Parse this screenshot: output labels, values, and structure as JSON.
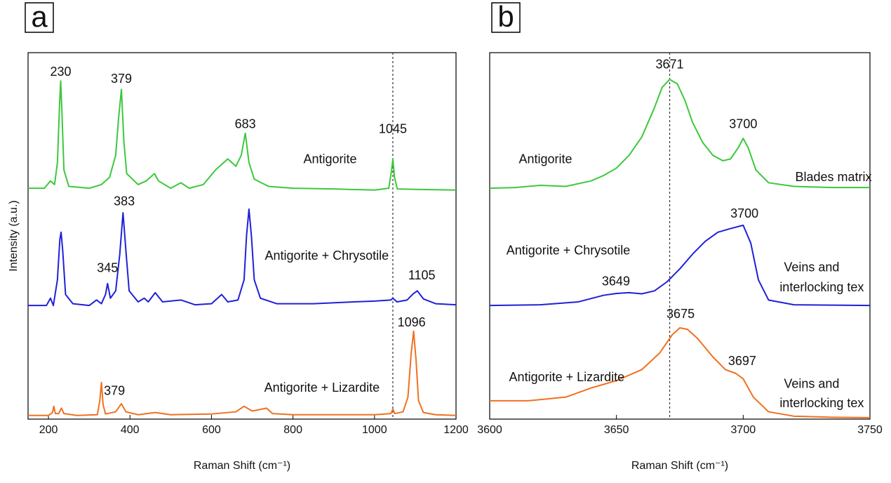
{
  "chart_data": [
    {
      "type": "line",
      "panel_label": "a",
      "xlabel": "Raman Shift (cm⁻¹)",
      "ylabel": "Intensity (a.u.)",
      "xlim": [
        150,
        1200
      ],
      "ylim": [
        0,
        10
      ],
      "xticks": [
        200,
        400,
        600,
        800,
        1000,
        1200
      ],
      "grid": false,
      "vline": 1045,
      "series": [
        {
          "name": "Antigorite",
          "color": "#3cc83c",
          "x": [
            150,
            190,
            205,
            215,
            222,
            227,
            230,
            233,
            238,
            250,
            300,
            330,
            350,
            365,
            372,
            379,
            385,
            392,
            420,
            440,
            460,
            470,
            500,
            525,
            545,
            580,
            610,
            640,
            660,
            673,
            683,
            692,
            705,
            740,
            800,
            900,
            1000,
            1035,
            1042,
            1045,
            1049,
            1056,
            1100,
            1200
          ],
          "values": [
            6.3,
            6.3,
            6.5,
            6.4,
            7.0,
            8.5,
            9.23,
            8.4,
            6.8,
            6.35,
            6.3,
            6.4,
            6.6,
            7.2,
            8.2,
            9.0,
            7.6,
            6.7,
            6.4,
            6.5,
            6.7,
            6.5,
            6.3,
            6.45,
            6.3,
            6.4,
            6.8,
            7.1,
            6.9,
            7.2,
            7.8,
            7.0,
            6.55,
            6.35,
            6.3,
            6.28,
            6.25,
            6.3,
            6.8,
            7.1,
            6.6,
            6.28,
            6.27,
            6.25
          ]
        },
        {
          "name": "Antigorite + Chrysotile",
          "color": "#2020d8",
          "x": [
            150,
            195,
            205,
            212,
            222,
            228,
            231,
            235,
            242,
            260,
            300,
            318,
            330,
            340,
            345,
            352,
            365,
            375,
            383,
            390,
            398,
            420,
            435,
            445,
            462,
            480,
            525,
            560,
            600,
            625,
            640,
            665,
            680,
            686,
            692,
            698,
            705,
            720,
            760,
            850,
            950,
            1000,
            1040,
            1045,
            1055,
            1080,
            1095,
            1105,
            1120,
            1150,
            1200
          ],
          "values": [
            3.1,
            3.1,
            3.3,
            3.1,
            3.8,
            4.9,
            5.1,
            4.6,
            3.4,
            3.15,
            3.1,
            3.25,
            3.15,
            3.4,
            3.7,
            3.3,
            3.5,
            4.5,
            5.63,
            4.6,
            3.5,
            3.2,
            3.3,
            3.2,
            3.45,
            3.2,
            3.25,
            3.12,
            3.15,
            3.4,
            3.2,
            3.25,
            3.8,
            5.0,
            5.73,
            5.0,
            3.8,
            3.3,
            3.15,
            3.15,
            3.2,
            3.22,
            3.25,
            3.3,
            3.2,
            3.25,
            3.42,
            3.5,
            3.28,
            3.15,
            3.12
          ]
        },
        {
          "name": "Antigorite + Lizardite",
          "color": "#f07020",
          "x": [
            150,
            200,
            210,
            213,
            217,
            225,
            232,
            238,
            270,
            320,
            326,
            330,
            334,
            340,
            365,
            379,
            390,
            420,
            462,
            500,
            600,
            660,
            680,
            700,
            735,
            750,
            800,
            900,
            1000,
            1040,
            1045,
            1050,
            1070,
            1082,
            1090,
            1096,
            1102,
            1108,
            1120,
            1150,
            1200
          ],
          "values": [
            0.1,
            0.1,
            0.18,
            0.35,
            0.15,
            0.15,
            0.3,
            0.15,
            0.1,
            0.12,
            0.5,
            1.0,
            0.4,
            0.14,
            0.2,
            0.42,
            0.2,
            0.12,
            0.18,
            0.12,
            0.14,
            0.2,
            0.35,
            0.22,
            0.3,
            0.15,
            0.12,
            0.12,
            0.12,
            0.15,
            0.27,
            0.15,
            0.2,
            0.6,
            1.8,
            2.4,
            1.6,
            0.5,
            0.18,
            0.12,
            0.1
          ]
        }
      ],
      "annotations": [
        {
          "text": "230",
          "x": 230,
          "y": 9.46
        },
        {
          "text": "379",
          "x": 379,
          "y": 9.27
        },
        {
          "text": "683",
          "x": 683,
          "y": 8.03
        },
        {
          "text": "1045",
          "x": 1045,
          "y": 7.9
        },
        {
          "text": "Antigorite",
          "x": 891,
          "y": 7.07
        },
        {
          "text": "383",
          "x": 386,
          "y": 5.92
        },
        {
          "text": "345",
          "x": 345,
          "y": 4.1
        },
        {
          "text": "Antigorite + Chrysotile",
          "x": 883,
          "y": 4.44
        },
        {
          "text": "1105",
          "x": 1116,
          "y": 3.9
        },
        {
          "text": "1096",
          "x": 1091,
          "y": 2.62
        },
        {
          "text": "379",
          "x": 362,
          "y": 0.75
        },
        {
          "text": "Antigorite + Lizardite",
          "x": 871,
          "y": 0.84
        }
      ]
    },
    {
      "type": "line",
      "panel_label": "b",
      "xlabel": "Raman Shift (cm⁻¹)",
      "xlim": [
        3600,
        3750
      ],
      "ylim": [
        0,
        10
      ],
      "xticks": [
        3600,
        3650,
        3700,
        3750
      ],
      "grid": false,
      "vline": 3671,
      "series": [
        {
          "name": "Antigorite",
          "color": "#3cc83c",
          "x": [
            3600,
            3610,
            3620,
            3630,
            3640,
            3645,
            3650,
            3655,
            3660,
            3665,
            3668,
            3671,
            3674,
            3677,
            3680,
            3684,
            3688,
            3692,
            3695,
            3698,
            3700,
            3702,
            3705,
            3710,
            3720,
            3735,
            3750
          ],
          "values": [
            6.3,
            6.32,
            6.38,
            6.35,
            6.5,
            6.65,
            6.85,
            7.2,
            7.7,
            8.5,
            9.05,
            9.27,
            9.15,
            8.7,
            8.1,
            7.55,
            7.2,
            7.05,
            7.1,
            7.4,
            7.66,
            7.4,
            6.8,
            6.45,
            6.35,
            6.32,
            6.32
          ]
        },
        {
          "name": "Antigorite + Chrysotile",
          "color": "#2020d8",
          "x": [
            3600,
            3620,
            3635,
            3645,
            3650,
            3655,
            3660,
            3665,
            3670,
            3675,
            3680,
            3685,
            3690,
            3695,
            3700,
            3703,
            3706,
            3710,
            3720,
            3750
          ],
          "values": [
            3.1,
            3.12,
            3.2,
            3.38,
            3.43,
            3.45,
            3.42,
            3.5,
            3.75,
            4.1,
            4.5,
            4.85,
            5.1,
            5.2,
            5.29,
            4.8,
            3.8,
            3.25,
            3.12,
            3.1
          ]
        },
        {
          "name": "Antigorite + Lizardite",
          "color": "#f07020",
          "x": [
            3600,
            3615,
            3630,
            3640,
            3650,
            3660,
            3667,
            3672,
            3675,
            3678,
            3682,
            3688,
            3693,
            3697,
            3700,
            3704,
            3710,
            3720,
            3735,
            3750
          ],
          "values": [
            0.5,
            0.5,
            0.6,
            0.85,
            1.05,
            1.35,
            1.8,
            2.3,
            2.49,
            2.45,
            2.2,
            1.7,
            1.35,
            1.25,
            1.1,
            0.6,
            0.2,
            0.08,
            0.05,
            0.04
          ]
        }
      ],
      "annotations": [
        {
          "text": "3671",
          "x": 3671,
          "y": 9.66
        },
        {
          "text": "3700",
          "x": 3700,
          "y": 8.03
        },
        {
          "text": "Antigorite",
          "x": 3622,
          "y": 7.07
        },
        {
          "text": "Blades matrix",
          "x": 3735.6,
          "y": 6.59
        },
        {
          "text": "3700",
          "x": 3700.5,
          "y": 5.59
        },
        {
          "text": "Antigorite + Chrysotile",
          "x": 3631,
          "y": 4.58
        },
        {
          "text": "Veins and",
          "x": 3727,
          "y": 4.12
        },
        {
          "text": "interlocking tex",
          "x": 3731,
          "y": 3.58
        },
        {
          "text": "3649",
          "x": 3649.8,
          "y": 3.74
        },
        {
          "text": "3675",
          "x": 3675.3,
          "y": 2.85
        },
        {
          "text": "3697",
          "x": 3699.6,
          "y": 1.57
        },
        {
          "text": "Antigorite + Lizardite",
          "x": 3630.4,
          "y": 1.13
        },
        {
          "text": "Veins and",
          "x": 3727,
          "y": 0.94
        },
        {
          "text": "interlocking tex",
          "x": 3731,
          "y": 0.42
        }
      ]
    }
  ]
}
